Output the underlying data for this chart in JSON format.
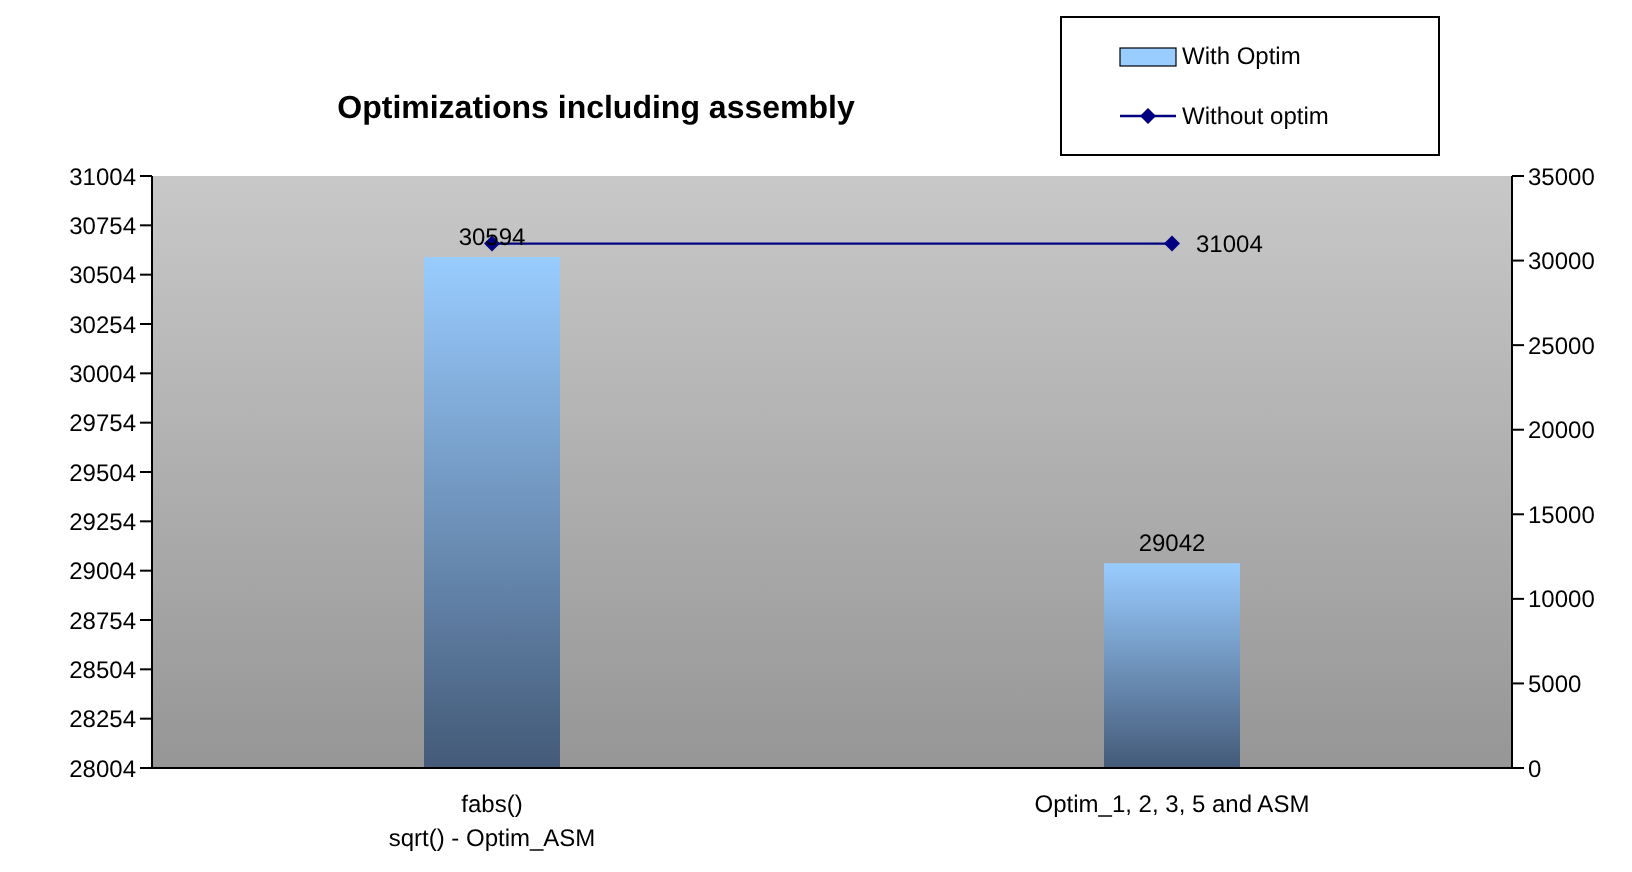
{
  "chart_data": {
    "type": "bar",
    "title": "Optimizations including assembly",
    "categories": [
      "fabs()\nsqrt() - Optim_ASM",
      "Optim_1, 2, 3, 5 and ASM"
    ],
    "series": [
      {
        "name": "With Optim",
        "color": "#99ccff",
        "values": [
          30594,
          29042
        ],
        "value_labels": [
          "30594",
          "29042"
        ]
      },
      {
        "name": "Without optim",
        "type": "line",
        "axis": "y2",
        "color": "#000080",
        "values": [
          31004,
          31004
        ],
        "value_labels": [
          null,
          "31004"
        ],
        "marker": "diamond"
      }
    ],
    "ylim": [
      28004,
      31004
    ],
    "yticks": [
      28004,
      28254,
      28504,
      28754,
      29004,
      29254,
      29504,
      29754,
      30004,
      30254,
      30504,
      30754,
      31004
    ],
    "y2lim": [
      0,
      35000
    ],
    "y2ticks": [
      0,
      5000,
      10000,
      15000,
      20000,
      25000,
      30000,
      35000
    ],
    "grid": false,
    "legend": "top right"
  }
}
